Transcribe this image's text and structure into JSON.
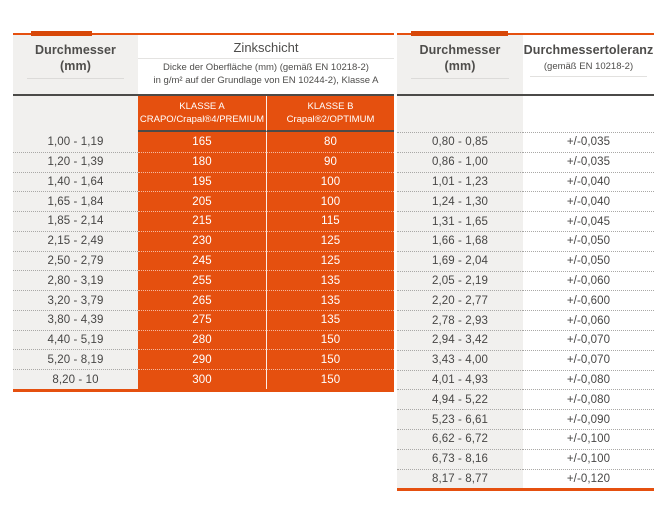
{
  "colors": {
    "orange": "#e5500f",
    "accent_orange": "#d74708",
    "dark_line": "#4b4a48",
    "gray_cell_bg": "#f1f0ee",
    "text": "#474645"
  },
  "left_table": {
    "header": {
      "col1_title": "Durchmesser",
      "col1_sub": "(mm)",
      "col2_title": "Zinkschicht",
      "col2_sub_line1": "Dicke der Oberfläche (mm) (gemäß EN 10218-2)",
      "col2_sub_line2": "in g/m² auf der Grundlage von EN 10244-2), Klasse A",
      "klasse_a_line1": "KLASSE A",
      "klasse_a_line2": "CRAPO/Crapal®4/PREMIUM",
      "klasse_b_line1": "KLASSE B",
      "klasse_b_line2": "Crapal®2/OPTIMUM"
    },
    "rows": [
      {
        "range": "1,00 - 1,19",
        "klasse_a": "165",
        "klasse_b": "80"
      },
      {
        "range": "1,20 - 1,39",
        "klasse_a": "180",
        "klasse_b": "90"
      },
      {
        "range": "1,40 - 1,64",
        "klasse_a": "195",
        "klasse_b": "100"
      },
      {
        "range": "1,65 - 1,84",
        "klasse_a": "205",
        "klasse_b": "100"
      },
      {
        "range": "1,85 - 2,14",
        "klasse_a": "215",
        "klasse_b": "115"
      },
      {
        "range": "2,15 - 2,49",
        "klasse_a": "230",
        "klasse_b": "125"
      },
      {
        "range": "2,50 - 2,79",
        "klasse_a": "245",
        "klasse_b": "125"
      },
      {
        "range": "2,80 - 3,19",
        "klasse_a": "255",
        "klasse_b": "135"
      },
      {
        "range": "3,20 - 3,79",
        "klasse_a": "265",
        "klasse_b": "135"
      },
      {
        "range": "3,80 - 4,39",
        "klasse_a": "275",
        "klasse_b": "135"
      },
      {
        "range": "4,40 - 5,19",
        "klasse_a": "280",
        "klasse_b": "150"
      },
      {
        "range": "5,20 - 8,19",
        "klasse_a": "290",
        "klasse_b": "150"
      },
      {
        "range": "8,20 - 10",
        "klasse_a": "300",
        "klasse_b": "150"
      }
    ]
  },
  "right_table": {
    "header": {
      "col1_title": "Durchmesser",
      "col1_sub": "(mm)",
      "col2_title": "Durchmessertoleranz",
      "col2_sub": "(gemäß EN 10218-2)"
    },
    "rows": [
      {
        "range": "0,80 - 0,85",
        "tolerance": "+/-0,035"
      },
      {
        "range": "0,86 - 1,00",
        "tolerance": "+/-0,035"
      },
      {
        "range": "1,01 - 1,23",
        "tolerance": "+/-0,040"
      },
      {
        "range": "1,24 - 1,30",
        "tolerance": "+/-0,040"
      },
      {
        "range": "1,31 - 1,65",
        "tolerance": "+/-0,045"
      },
      {
        "range": "1,66 - 1,68",
        "tolerance": "+/-0,050"
      },
      {
        "range": "1,69 - 2,04",
        "tolerance": "+/-0,050"
      },
      {
        "range": "2,05 - 2,19",
        "tolerance": "+/-0,060"
      },
      {
        "range": "2,20 - 2,77",
        "tolerance": "+/-0,600"
      },
      {
        "range": "2,78 - 2,93",
        "tolerance": "+/-0,060"
      },
      {
        "range": "2,94 - 3,42",
        "tolerance": "+/-0,070"
      },
      {
        "range": "3,43 - 4,00",
        "tolerance": "+/-0,070"
      },
      {
        "range": "4,01 - 4,93",
        "tolerance": "+/-0,080"
      },
      {
        "range": "4,94 - 5,22",
        "tolerance": "+/-0,080"
      },
      {
        "range": "5,23 - 6,61",
        "tolerance": "+/-0,090"
      },
      {
        "range": "6,62 - 6,72",
        "tolerance": "+/-0,100"
      },
      {
        "range": "6,73 - 8,16",
        "tolerance": "+/-0,100"
      },
      {
        "range": "8,17 - 8,77",
        "tolerance": "+/-0,120"
      }
    ]
  }
}
